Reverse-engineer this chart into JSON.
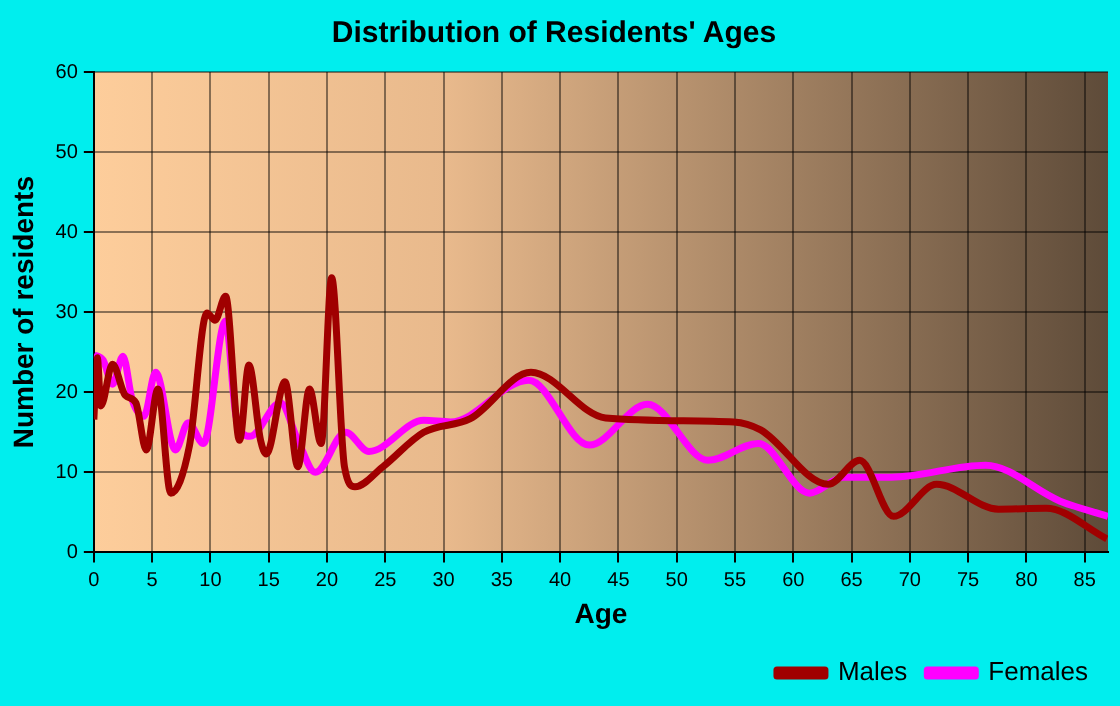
{
  "chart_data": {
    "type": "line",
    "title": "Distribution of Residents' Ages",
    "xlabel": "Age",
    "ylabel": "Number of residents",
    "xlim": [
      0,
      87
    ],
    "xticks": [
      0,
      5,
      10,
      15,
      20,
      25,
      30,
      35,
      40,
      45,
      50,
      55,
      60,
      65,
      70,
      75,
      80,
      85
    ],
    "ylim": [
      0,
      60
    ],
    "yticks": [
      0,
      10,
      20,
      30,
      40,
      50,
      60
    ],
    "grid": true,
    "legend": "bottom right",
    "marker": "none",
    "series": [
      {
        "name": "Males",
        "color": "#a00000",
        "x": [
          0,
          0.3,
          0.6,
          1.6,
          2.7,
          3.6,
          4.5,
          5.5,
          6.6,
          8.2,
          9.7,
          10.4,
          11.3,
          12.5,
          13.3,
          14.3,
          14.8,
          16.4,
          17.5,
          18.5,
          19.5,
          20.4,
          21.5,
          22.4,
          24.8,
          28.3,
          32.3,
          37.5,
          43.9,
          54.9,
          57.2,
          63,
          65.7,
          68.6,
          72.3,
          77.6,
          81.7,
          86.9
        ],
        "values": [
          16.6,
          24.3,
          18.3,
          23.5,
          19.6,
          18.7,
          12.8,
          20.4,
          7.4,
          13.3,
          29.9,
          29,
          32,
          14,
          23.4,
          14,
          12.3,
          21.3,
          10.7,
          20.4,
          13.6,
          34.3,
          10.7,
          8.2,
          10.7,
          15,
          16.7,
          22.5,
          16.8,
          16.3,
          15.3,
          8.5,
          11.5,
          4.5,
          8.5,
          5.4,
          5.5,
          1.7
        ]
      },
      {
        "name": "Females",
        "color": "#ff00ff",
        "x": [
          0,
          0.8,
          1.6,
          2.5,
          3.3,
          4.3,
          5.3,
          7,
          8.1,
          9.4,
          11.3,
          12.2,
          13.4,
          16,
          17.5,
          19,
          21.6,
          23.6,
          28.3,
          30.6,
          37.3,
          42.5,
          47.5,
          52.7,
          57,
          61.4,
          64.3,
          68.4,
          76.5,
          82.9,
          87
        ],
        "values": [
          24.7,
          24,
          21,
          24.5,
          19,
          17,
          22.5,
          12.8,
          16.2,
          13.6,
          28.9,
          17,
          14.5,
          18.7,
          14,
          10,
          15,
          12.6,
          16.5,
          16.3,
          21.5,
          13.4,
          18.5,
          11.5,
          13.6,
          7.4,
          9.4,
          9.4,
          10.9,
          6.4,
          4.5
        ]
      }
    ]
  }
}
